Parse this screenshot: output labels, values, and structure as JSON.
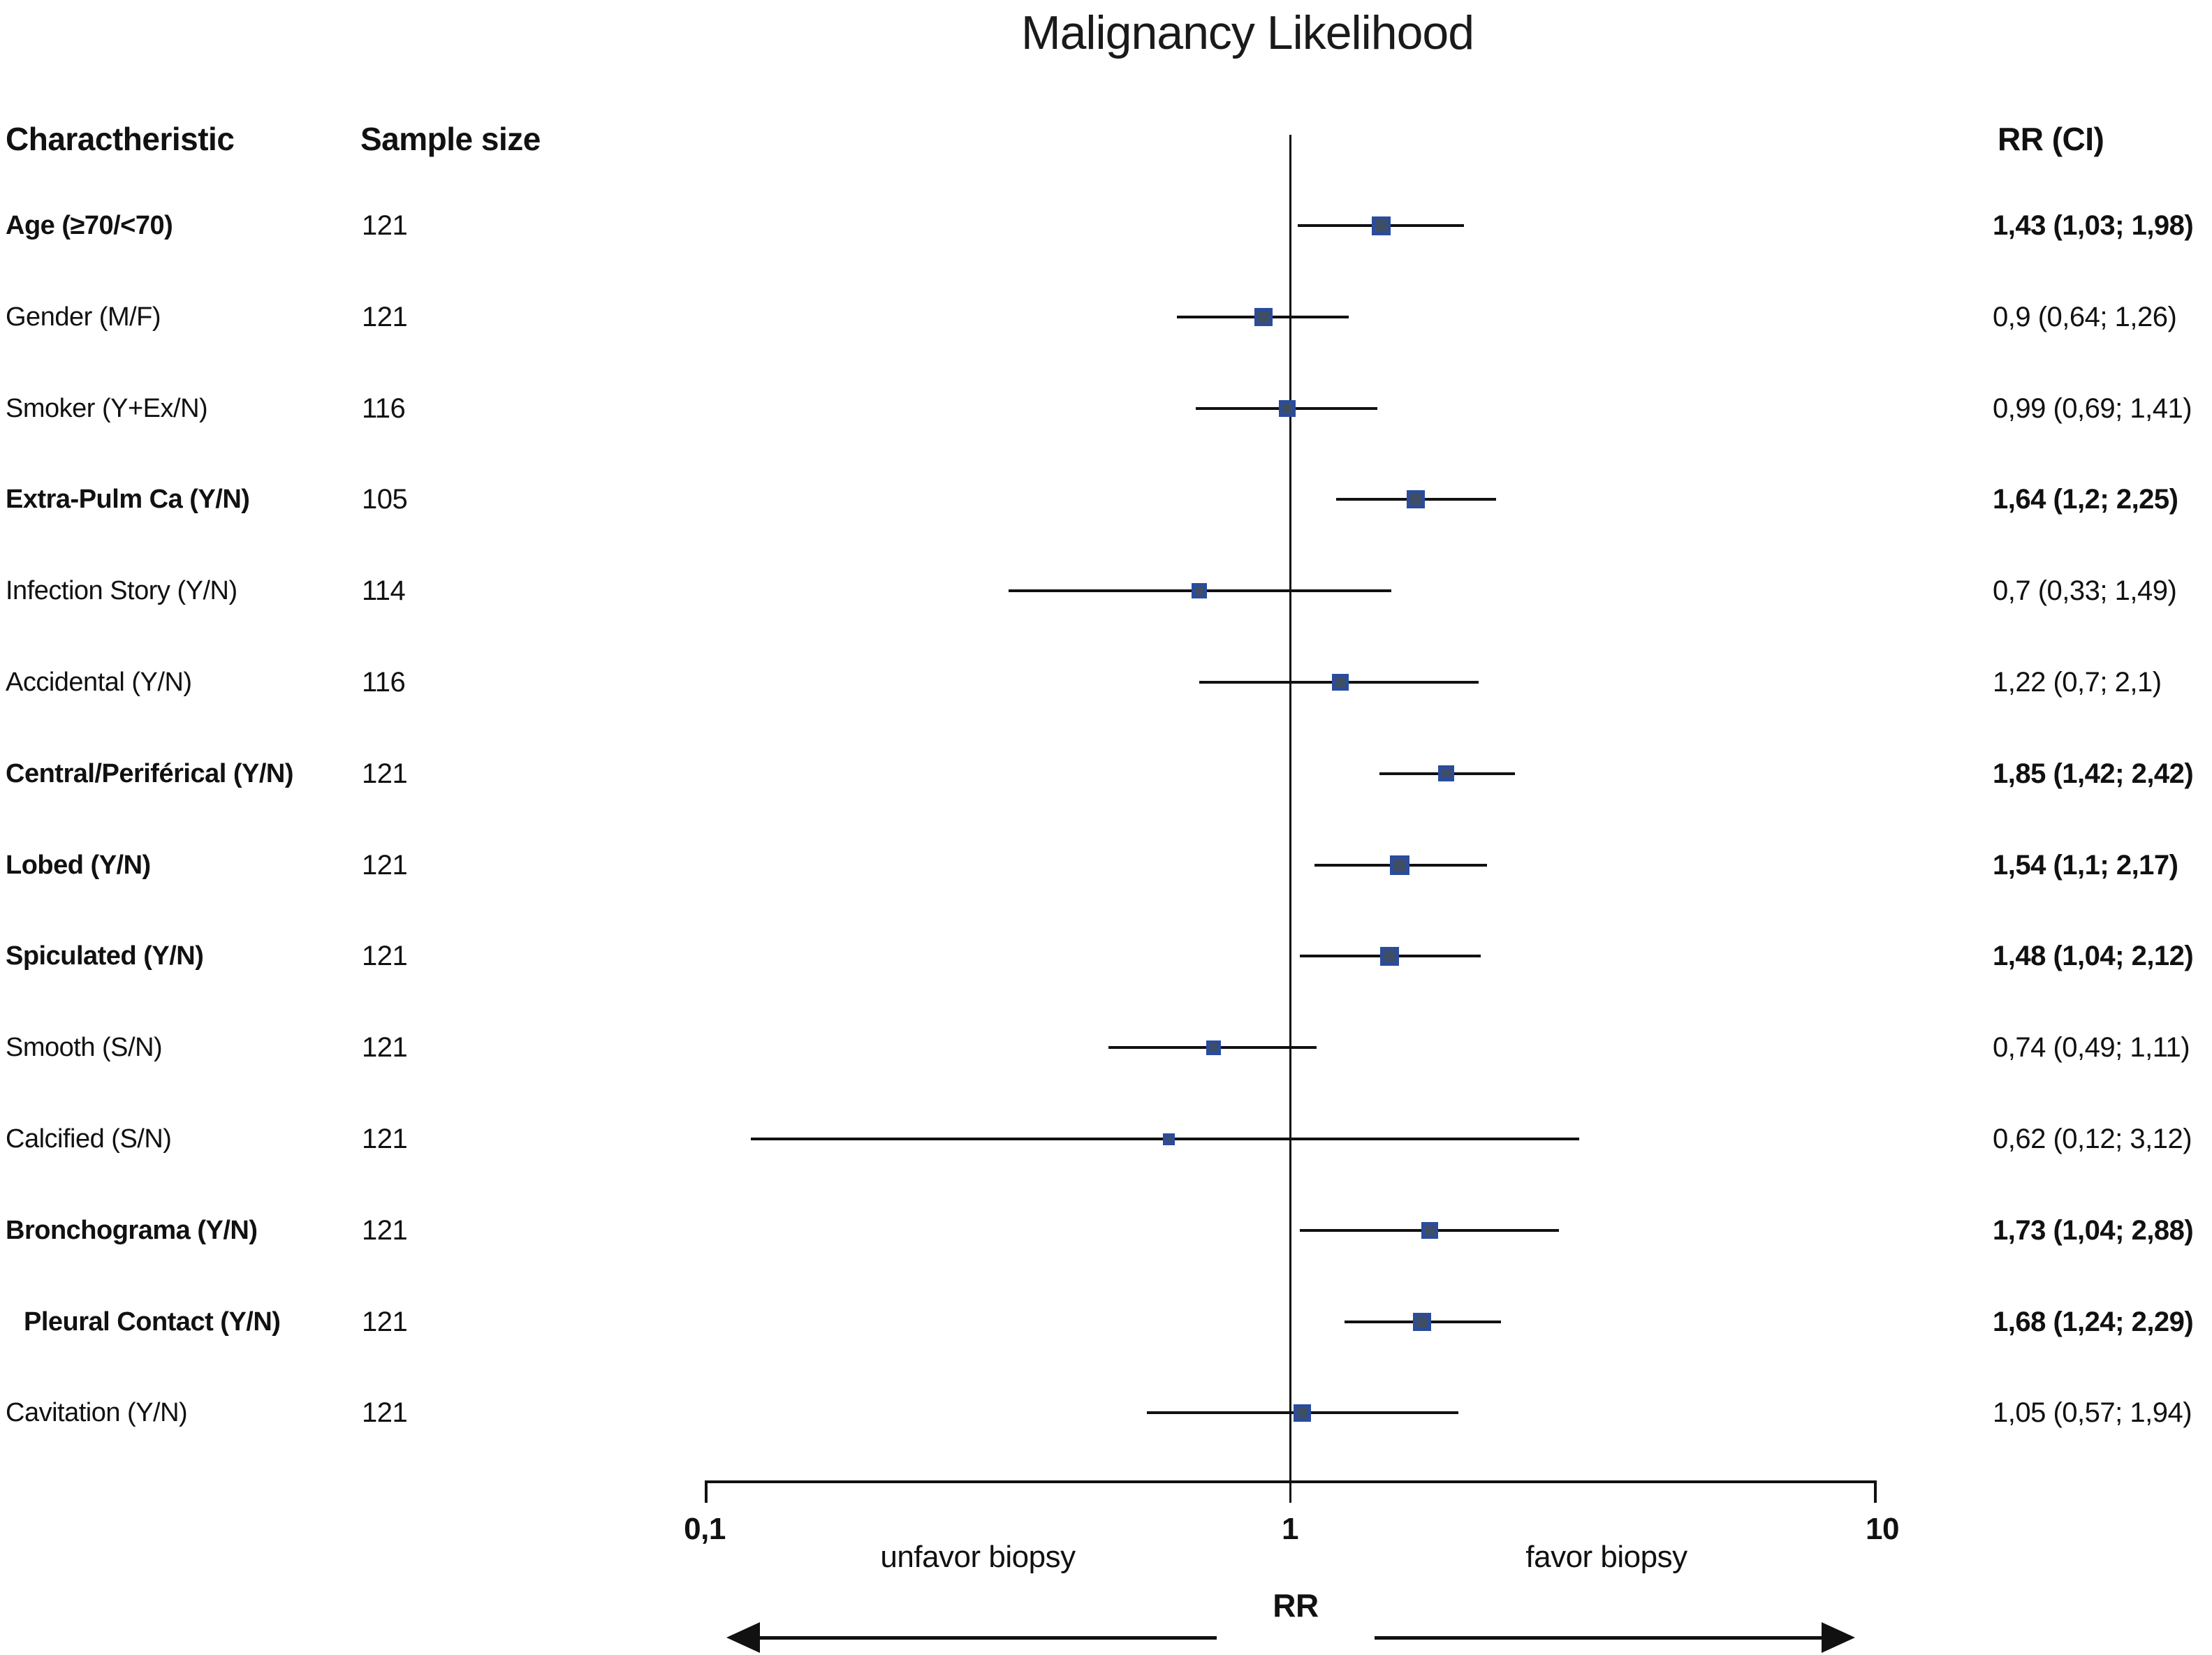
{
  "title": "Malignancy Likelihood",
  "columns": {
    "characteristic": "Charactheristic",
    "sample_size": "Sample size",
    "rr_ci": "RR (CI)"
  },
  "axis": {
    "min_tick_label": "0,1",
    "mid_tick_label": "1",
    "max_tick_label": "10",
    "left_region_label": "unfavor biopsy",
    "right_region_label": "favor biopsy",
    "axis_title": "RR"
  },
  "colors": {
    "marker_fill": "#3d4e66",
    "marker_border": "#2b4c9c",
    "line": "#111111",
    "text": "#111111",
    "background": "#ffffff"
  },
  "chart_data": {
    "type": "forest",
    "x_axis": {
      "label": "RR",
      "scale": "log10",
      "range": [
        0.1,
        10
      ],
      "ticks": [
        0.1,
        1,
        10
      ],
      "reference_line": 1
    },
    "legend": null,
    "rows": [
      {
        "label": "Age (≥70/<70)",
        "sample_size": "121",
        "rr": 1.43,
        "ci_low": 1.03,
        "ci_high": 1.98,
        "rr_ci_text": "1,43 (1,03; 1,98)",
        "bold": true,
        "marker_size": 27,
        "indent": false
      },
      {
        "label": "Gender (M/F)",
        "sample_size": "121",
        "rr": 0.9,
        "ci_low": 0.64,
        "ci_high": 1.26,
        "rr_ci_text": "0,9 (0,64; 1,26)",
        "bold": false,
        "marker_size": 26,
        "indent": false
      },
      {
        "label": "Smoker (Y+Ex/N)",
        "sample_size": "116",
        "rr": 0.99,
        "ci_low": 0.69,
        "ci_high": 1.41,
        "rr_ci_text": "0,99 (0,69; 1,41)",
        "bold": false,
        "marker_size": 24,
        "indent": false
      },
      {
        "label": "Extra-Pulm Ca (Y/N)",
        "sample_size": "105",
        "rr": 1.64,
        "ci_low": 1.2,
        "ci_high": 2.25,
        "rr_ci_text": "1,64 (1,2; 2,25)",
        "bold": true,
        "marker_size": 26,
        "indent": false
      },
      {
        "label": "Infection Story (Y/N)",
        "sample_size": "114",
        "rr": 0.7,
        "ci_low": 0.33,
        "ci_high": 1.49,
        "rr_ci_text": "0,7 (0,33; 1,49)",
        "bold": false,
        "marker_size": 22,
        "indent": false
      },
      {
        "label": "Accidental (Y/N)",
        "sample_size": "116",
        "rr": 1.22,
        "ci_low": 0.7,
        "ci_high": 2.1,
        "rr_ci_text": "1,22 (0,7; 2,1)",
        "bold": false,
        "marker_size": 24,
        "indent": false
      },
      {
        "label": "Central/Periférical (Y/N)",
        "sample_size": "121",
        "rr": 1.85,
        "ci_low": 1.42,
        "ci_high": 2.42,
        "rr_ci_text": "1,85 (1,42; 2,42)",
        "bold": true,
        "marker_size": 23,
        "indent": false
      },
      {
        "label": "Lobed (Y/N)",
        "sample_size": "121",
        "rr": 1.54,
        "ci_low": 1.1,
        "ci_high": 2.17,
        "rr_ci_text": "1,54 (1,1; 2,17)",
        "bold": true,
        "marker_size": 28,
        "indent": false
      },
      {
        "label": "Spiculated (Y/N)",
        "sample_size": "121",
        "rr": 1.48,
        "ci_low": 1.04,
        "ci_high": 2.12,
        "rr_ci_text": "1,48 (1,04; 2,12)",
        "bold": true,
        "marker_size": 27,
        "indent": false
      },
      {
        "label": "Smooth (S/N)",
        "sample_size": "121",
        "rr": 0.74,
        "ci_low": 0.49,
        "ci_high": 1.11,
        "rr_ci_text": "0,74 (0,49; 1,11)",
        "bold": false,
        "marker_size": 21,
        "indent": false
      },
      {
        "label": "Calcified (S/N)",
        "sample_size": "121",
        "rr": 0.62,
        "ci_low": 0.12,
        "ci_high": 3.12,
        "rr_ci_text": "0,62 (0,12; 3,12)",
        "bold": false,
        "marker_size": 17,
        "indent": false
      },
      {
        "label": "Bronchograma (Y/N)",
        "sample_size": "121",
        "rr": 1.73,
        "ci_low": 1.04,
        "ci_high": 2.88,
        "rr_ci_text": "1,73 (1,04; 2,88)",
        "bold": true,
        "marker_size": 24,
        "indent": false
      },
      {
        "label": "Pleural Contact (Y/N)",
        "sample_size": "121",
        "rr": 1.68,
        "ci_low": 1.24,
        "ci_high": 2.29,
        "rr_ci_text": "1,68 (1,24; 2,29)",
        "bold": true,
        "marker_size": 26,
        "indent": true
      },
      {
        "label": "Cavitation (Y/N)",
        "sample_size": "121",
        "rr": 1.05,
        "ci_low": 0.57,
        "ci_high": 1.94,
        "rr_ci_text": "1,05 (0,57; 1,94)",
        "bold": false,
        "marker_size": 25,
        "indent": false
      }
    ]
  }
}
